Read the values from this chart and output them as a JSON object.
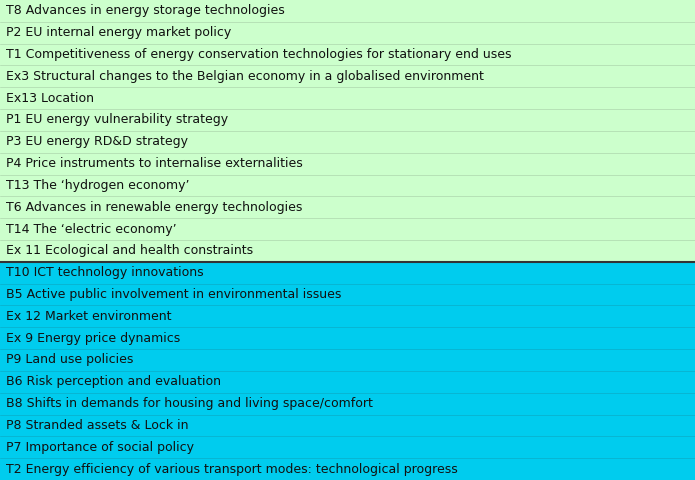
{
  "green_rows": [
    "T8 Advances in energy storage technologies",
    "P2 EU internal energy market policy",
    "T1 Competitiveness of energy conservation technologies for stationary end uses",
    "Ex3 Structural changes to the Belgian economy in a globalised environment",
    "Ex13 Location",
    "P1 EU energy vulnerability strategy",
    "P3 EU energy RD&D strategy",
    "P4 Price instruments to internalise externalities",
    "T13 The ‘hydrogen economy’",
    "T6 Advances in renewable energy technologies",
    "T14 The ‘electric economy’",
    "Ex 11 Ecological and health constraints"
  ],
  "cyan_rows": [
    "T10 ICT technology innovations",
    "B5 Active public involvement in environmental issues",
    "Ex 12 Market environment",
    "Ex 9 Energy price dynamics",
    "P9 Land use policies",
    "B6 Risk perception and evaluation",
    "B8 Shifts in demands for housing and living space/comfort",
    "P8 Stranded assets & Lock in",
    "P7 Importance of social policy",
    "T2 Energy efficiency of various transport modes: technological progress"
  ],
  "green_bg": "#ccffcc",
  "cyan_bg": "#00ccee",
  "text_color": "#111111",
  "font_size": 9.0,
  "divider_color": "#333333",
  "fig_width": 6.95,
  "fig_height": 4.8,
  "dpi": 100
}
